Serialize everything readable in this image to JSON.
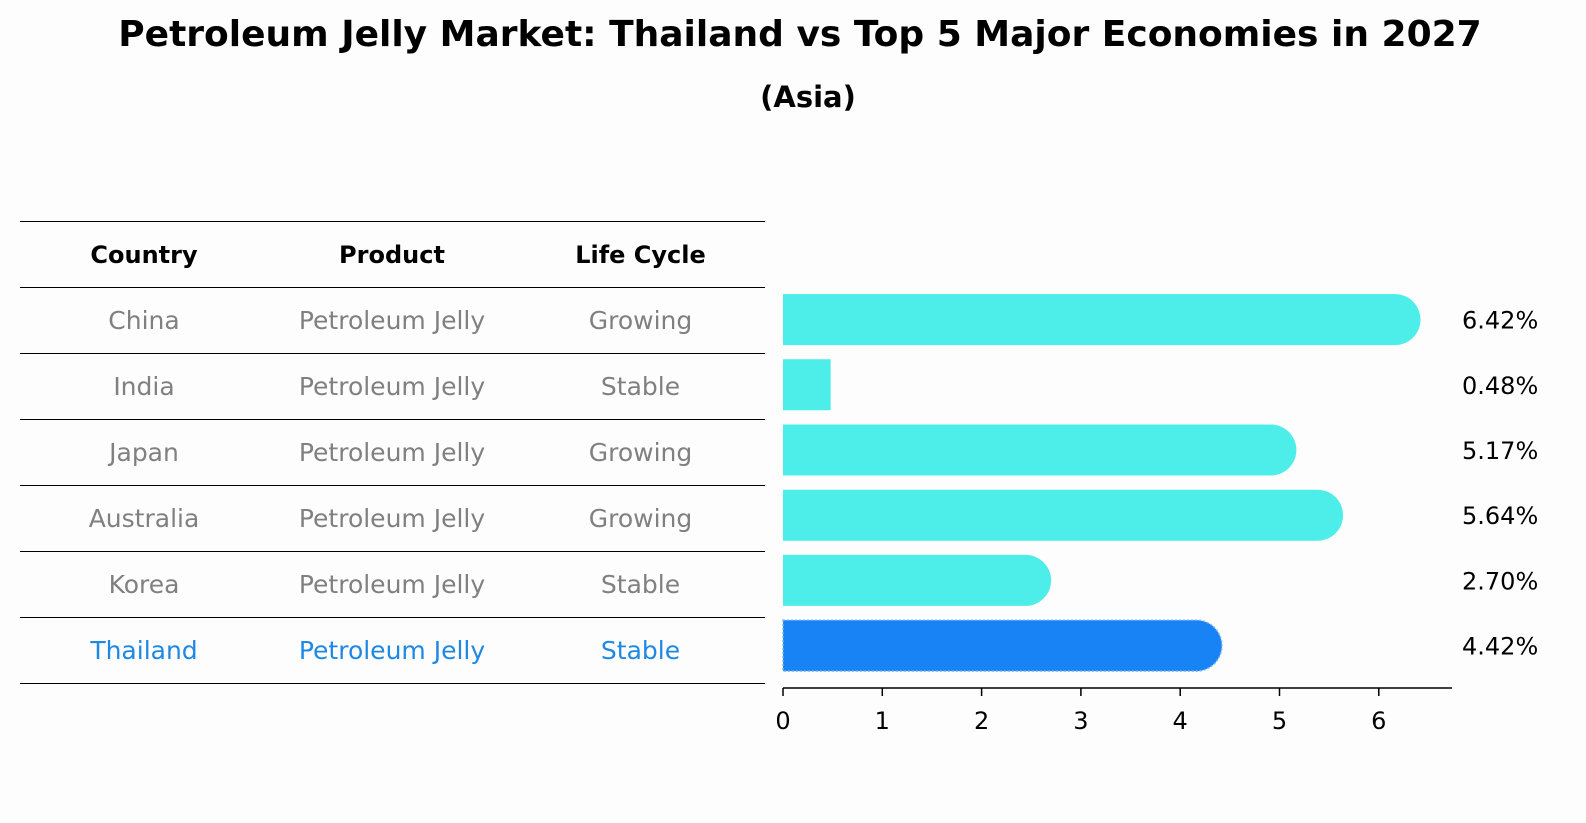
{
  "title": "Petroleum Jelly Market: Thailand vs Top 5 Major Economies in 2027",
  "subtitle": "(Asia)",
  "table": {
    "headers": [
      "Country",
      "Product",
      "Life Cycle"
    ],
    "rows": [
      [
        "China",
        "Petroleum Jelly",
        "Growing"
      ],
      [
        "India",
        "Petroleum Jelly",
        "Stable"
      ],
      [
        "Japan",
        "Petroleum Jelly",
        "Growing"
      ],
      [
        "Australia",
        "Petroleum Jelly",
        "Growing"
      ],
      [
        "Korea",
        "Petroleum Jelly",
        "Stable"
      ],
      [
        "Thailand",
        "Petroleum Jelly",
        "Stable"
      ]
    ],
    "highlight_row": 5
  },
  "colors": {
    "bar": "#4deeea",
    "highlight_bar": "#1883f5",
    "highlight_text": "#1e88e5",
    "muted_text": "#808080"
  },
  "chart_data": {
    "type": "bar",
    "orientation": "horizontal",
    "categories": [
      "China",
      "India",
      "Japan",
      "Australia",
      "Korea",
      "Thailand"
    ],
    "values": [
      6.42,
      0.48,
      5.17,
      5.64,
      2.7,
      4.42
    ],
    "value_labels": [
      "6.42%",
      "0.48%",
      "5.17%",
      "5.64%",
      "2.70%",
      "4.42%"
    ],
    "highlight_index": 5,
    "xlim": [
      0,
      6.7
    ],
    "xticks": [
      0,
      1,
      2,
      3,
      4,
      5,
      6
    ],
    "xlabel": "",
    "ylabel": "",
    "grid": false
  }
}
